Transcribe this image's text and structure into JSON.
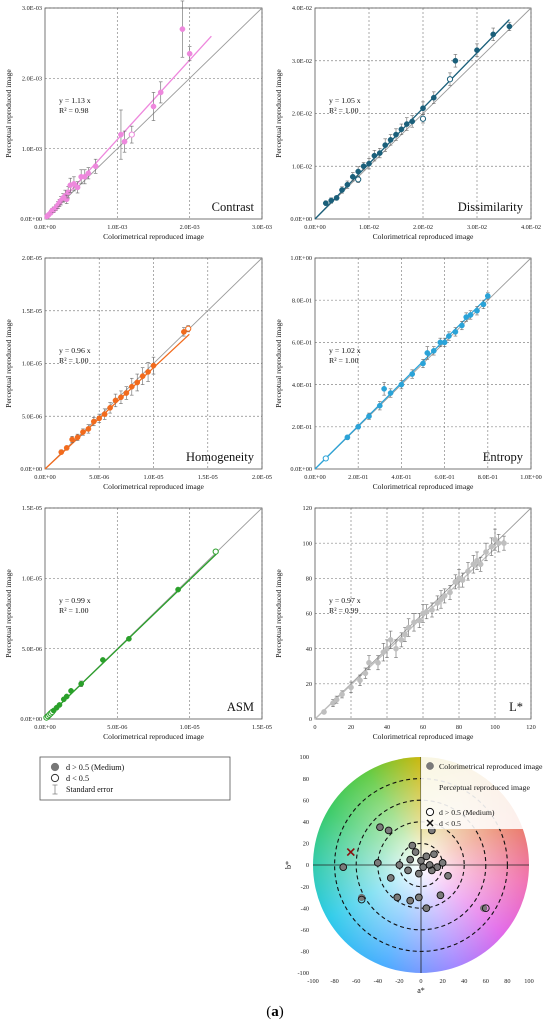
{
  "figure_label": {
    "open": "(",
    "letter": "a",
    "close": ")"
  },
  "common": {
    "xlabel": "Colorimetrical reproduced image",
    "ylabel": "Perceptual reproduced image"
  },
  "colors": {
    "contrast": "#ee88dd",
    "dissimilarity": "#1a5f7a",
    "homogeneity": "#f26b1d",
    "entropy": "#2aa3d8",
    "asm": "#2aa02a",
    "lstar": "#bfbfbf",
    "grid": "#888888",
    "diag": "#9a9a9a"
  },
  "legend": {
    "items": [
      {
        "label": "d > 0.5 (Medium)",
        "icon": "filled-circle-icon"
      },
      {
        "label": "d < 0.5",
        "icon": "open-circle-icon"
      },
      {
        "label": "Standard error",
        "icon": "error-bar-icon"
      }
    ]
  },
  "chart_data": [
    {
      "type": "scatter",
      "key": "contrast",
      "name": "Contrast",
      "xlim": [
        0,
        0.003
      ],
      "ylim": [
        0,
        0.003
      ],
      "xticks": [
        "0.0E+00",
        "1.0E-03",
        "2.0E-03",
        "3.0E-03"
      ],
      "yticks": [
        "0.0E+00",
        "1.0E-03",
        "2.0E-03",
        "3.0E-03"
      ],
      "equation": "y = 1.13 x",
      "r2": "R² = 0.98",
      "slope": 1.13,
      "fit_max_x": 0.0023,
      "points": [
        [
          3e-05,
          4e-05,
          2e-05,
          1
        ],
        [
          5e-05,
          6e-05,
          2e-05,
          1
        ],
        [
          8e-05,
          9e-05,
          3e-05,
          1
        ],
        [
          0.0001,
          0.00012,
          3e-05,
          1
        ],
        [
          0.00012,
          0.00013,
          4e-05,
          1
        ],
        [
          0.00015,
          0.00016,
          4e-05,
          1
        ],
        [
          0.00018,
          0.0002,
          5e-05,
          1
        ],
        [
          0.0002,
          0.00023,
          5e-05,
          1
        ],
        [
          0.00022,
          0.00026,
          6e-05,
          1
        ],
        [
          0.00025,
          0.0003,
          6e-05,
          1
        ],
        [
          0.00028,
          0.00033,
          8e-05,
          1
        ],
        [
          0.0003,
          0.00028,
          6e-05,
          1
        ],
        [
          0.00032,
          0.00038,
          8e-05,
          1
        ],
        [
          0.00035,
          0.00048,
          0.0001,
          1
        ],
        [
          0.0004,
          0.0005,
          0.0001,
          1
        ],
        [
          0.00045,
          0.00045,
          8e-05,
          1
        ],
        [
          0.0005,
          0.0006,
          0.0001,
          1
        ],
        [
          0.00055,
          0.0006,
          0.0001,
          1
        ],
        [
          0.0006,
          0.00065,
          8e-05,
          1
        ],
        [
          0.0007,
          0.00075,
          0.0001,
          1
        ],
        [
          0.00105,
          0.0012,
          0.00035,
          1
        ],
        [
          0.0011,
          0.0011,
          0.00015,
          1
        ],
        [
          0.0012,
          0.0012,
          0.00012,
          0
        ],
        [
          0.0015,
          0.0016,
          0.0002,
          1
        ],
        [
          0.0016,
          0.0018,
          0.00015,
          1
        ],
        [
          0.0019,
          0.0027,
          0.0004,
          1
        ],
        [
          0.002,
          0.00235,
          0.0001,
          1
        ]
      ]
    },
    {
      "type": "scatter",
      "key": "dissimilarity",
      "name": "Dissimilarity",
      "xlim": [
        0,
        0.04
      ],
      "ylim": [
        0,
        0.04
      ],
      "xticks": [
        "0.0E+00",
        "1.0E-02",
        "2.0E-02",
        "3.0E-02",
        "4.0E-02"
      ],
      "yticks": [
        "0.0E+00",
        "1.0E-02",
        "2.0E-02",
        "3.0E-02",
        "4.0E-02"
      ],
      "equation": "y = 1.05 x",
      "r2": "R² = 1.00",
      "slope": 1.05,
      "fit_max_x": 0.036,
      "points": [
        [
          0.002,
          0.003,
          0.0004,
          1
        ],
        [
          0.003,
          0.0035,
          0.0005,
          1
        ],
        [
          0.004,
          0.004,
          0.0004,
          1
        ],
        [
          0.005,
          0.0055,
          0.0006,
          1
        ],
        [
          0.006,
          0.0065,
          0.0007,
          1
        ],
        [
          0.007,
          0.008,
          0.0008,
          1
        ],
        [
          0.008,
          0.009,
          0.0009,
          1
        ],
        [
          0.009,
          0.01,
          0.0007,
          1
        ],
        [
          0.01,
          0.0105,
          0.001,
          1
        ],
        [
          0.011,
          0.012,
          0.001,
          1
        ],
        [
          0.012,
          0.0125,
          0.0009,
          1
        ],
        [
          0.013,
          0.014,
          0.0012,
          1
        ],
        [
          0.014,
          0.015,
          0.001,
          1
        ],
        [
          0.015,
          0.016,
          0.0011,
          1
        ],
        [
          0.016,
          0.017,
          0.001,
          1
        ],
        [
          0.017,
          0.018,
          0.0012,
          1
        ],
        [
          0.018,
          0.0185,
          0.0011,
          1
        ],
        [
          0.02,
          0.021,
          0.0012,
          1
        ],
        [
          0.022,
          0.023,
          0.0011,
          1
        ],
        [
          0.025,
          0.0265,
          0.0012,
          0
        ],
        [
          0.026,
          0.03,
          0.0012,
          1
        ],
        [
          0.03,
          0.032,
          0.0012,
          1
        ],
        [
          0.033,
          0.035,
          0.0012,
          1
        ],
        [
          0.036,
          0.0365,
          0.0008,
          1
        ],
        [
          0.008,
          0.0075,
          0.0006,
          0
        ],
        [
          0.02,
          0.019,
          0.0008,
          0
        ]
      ]
    },
    {
      "type": "scatter",
      "key": "homogeneity",
      "name": "Homogeneity",
      "xlim": [
        0,
        2e-05
      ],
      "ylim": [
        0,
        2e-05
      ],
      "xticks": [
        "0.0E+00",
        "5.0E-06",
        "1.0E-05",
        "1.5E-05",
        "2.0E-05"
      ],
      "yticks": [
        "0.0E+00",
        "5.0E-06",
        "1.0E-05",
        "1.5E-05",
        "2.0E-05"
      ],
      "equation": "y = 0.96 x",
      "r2": "R² = 1.00",
      "slope": 0.96,
      "fit_max_x": 1.33e-05,
      "points": [
        [
          1.5e-06,
          1.6e-06,
          2e-07,
          1
        ],
        [
          2e-06,
          2e-06,
          2e-07,
          1
        ],
        [
          2.5e-06,
          2.8e-06,
          3e-07,
          1
        ],
        [
          3e-06,
          3e-06,
          3e-07,
          1
        ],
        [
          3.5e-06,
          3.5e-06,
          3e-07,
          1
        ],
        [
          4e-06,
          3.8e-06,
          4e-07,
          1
        ],
        [
          4.5e-06,
          4.5e-06,
          4e-07,
          1
        ],
        [
          5e-06,
          4.8e-06,
          4e-07,
          1
        ],
        [
          5.5e-06,
          5.2e-06,
          5e-07,
          1
        ],
        [
          6e-06,
          5.8e-06,
          5e-07,
          1
        ],
        [
          6.5e-06,
          6.5e-06,
          6e-07,
          1
        ],
        [
          7e-06,
          6.8e-06,
          6e-07,
          1
        ],
        [
          7.5e-06,
          7.2e-06,
          6e-07,
          1
        ],
        [
          8e-06,
          7.8e-06,
          8e-07,
          1
        ],
        [
          8.5e-06,
          8.2e-06,
          8e-07,
          1
        ],
        [
          9e-06,
          8.8e-06,
          8e-07,
          1
        ],
        [
          9.5e-06,
          9.2e-06,
          9e-07,
          1
        ],
        [
          1e-05,
          9.8e-06,
          8e-07,
          1
        ],
        [
          1.28e-05,
          1.3e-05,
          4e-07,
          1
        ],
        [
          1.32e-05,
          1.33e-05,
          3e-07,
          0
        ]
      ]
    },
    {
      "type": "scatter",
      "key": "entropy",
      "name": "Entropy",
      "xlim": [
        0,
        1
      ],
      "ylim": [
        0,
        1
      ],
      "xticks": [
        "0.0E+00",
        "2.0E-01",
        "4.0E-01",
        "6.0E-01",
        "8.0E-01",
        "1.0E+00"
      ],
      "yticks": [
        "0.0E+00",
        "2.0E-01",
        "4.0E-01",
        "6.0E-01",
        "8.0E-01",
        "1.0E+00"
      ],
      "equation": "y = 1.02 x",
      "r2": "R² = 1.00",
      "slope": 1.02,
      "fit_max_x": 0.81,
      "points": [
        [
          0.05,
          0.05,
          0.005,
          0
        ],
        [
          0.15,
          0.15,
          0.01,
          1
        ],
        [
          0.2,
          0.2,
          0.01,
          1
        ],
        [
          0.25,
          0.25,
          0.015,
          1
        ],
        [
          0.3,
          0.3,
          0.02,
          1
        ],
        [
          0.32,
          0.38,
          0.03,
          1
        ],
        [
          0.35,
          0.36,
          0.02,
          1
        ],
        [
          0.4,
          0.4,
          0.02,
          1
        ],
        [
          0.45,
          0.45,
          0.02,
          1
        ],
        [
          0.5,
          0.5,
          0.02,
          1
        ],
        [
          0.52,
          0.55,
          0.03,
          1
        ],
        [
          0.55,
          0.56,
          0.02,
          1
        ],
        [
          0.58,
          0.6,
          0.02,
          1
        ],
        [
          0.6,
          0.6,
          0.02,
          1
        ],
        [
          0.62,
          0.63,
          0.02,
          1
        ],
        [
          0.65,
          0.65,
          0.02,
          1
        ],
        [
          0.68,
          0.68,
          0.02,
          1
        ],
        [
          0.7,
          0.72,
          0.02,
          1
        ],
        [
          0.72,
          0.73,
          0.02,
          1
        ],
        [
          0.75,
          0.75,
          0.02,
          1
        ],
        [
          0.78,
          0.78,
          0.02,
          1
        ],
        [
          0.8,
          0.82,
          0.015,
          1
        ]
      ]
    },
    {
      "type": "scatter",
      "key": "asm",
      "name": "ASM",
      "xlim": [
        0,
        1.5e-05
      ],
      "ylim": [
        0,
        1.5e-05
      ],
      "xticks": [
        "0.0E+00",
        "5.0E-06",
        "1.0E-05",
        "1.5E-05"
      ],
      "yticks": [
        "0.0E+00",
        "5.0E-06",
        "1.0E-05",
        "1.5E-05"
      ],
      "equation": "y = 0.99 x",
      "r2": "R² = 1.00",
      "slope": 0.99,
      "fit_max_x": 1.19e-05,
      "points": [
        [
          1e-07,
          1e-07,
          3e-08,
          0
        ],
        [
          2e-07,
          2e-07,
          4e-08,
          0
        ],
        [
          3e-07,
          3e-07,
          4e-08,
          0
        ],
        [
          4e-07,
          4e-07,
          5e-08,
          0
        ],
        [
          5e-07,
          5e-07,
          6e-08,
          0
        ],
        [
          6e-07,
          6e-07,
          6e-08,
          1
        ],
        [
          8e-07,
          8e-07,
          8e-08,
          1
        ],
        [
          1e-06,
          1e-06,
          1e-07,
          1
        ],
        [
          1.3e-06,
          1.4e-06,
          1e-07,
          1
        ],
        [
          1.5e-06,
          1.6e-06,
          1e-07,
          1
        ],
        [
          1.8e-06,
          2e-06,
          1e-07,
          1
        ],
        [
          2.5e-06,
          2.5e-06,
          2e-07,
          1
        ],
        [
          4e-06,
          4.2e-06,
          1e-07,
          1
        ],
        [
          5.8e-06,
          5.7e-06,
          1e-07,
          1
        ],
        [
          9.2e-06,
          9.2e-06,
          1e-07,
          1
        ],
        [
          1.18e-05,
          1.19e-05,
          1e-07,
          0
        ]
      ]
    },
    {
      "type": "scatter",
      "key": "lstar",
      "name": "L*",
      "xlim": [
        0,
        120
      ],
      "ylim": [
        0,
        120
      ],
      "xticks": [
        "0",
        "20",
        "40",
        "60",
        "80",
        "100",
        "120"
      ],
      "yticks": [
        "0",
        "20",
        "40",
        "60",
        "80",
        "100",
        "120"
      ],
      "equation": "y = 0.97 x",
      "r2": "R² = 0.99",
      "slope": 0.97,
      "fit_max_x": 105,
      "points": [
        [
          5,
          4,
          1,
          1
        ],
        [
          10,
          9,
          2,
          1
        ],
        [
          12,
          11,
          2,
          1
        ],
        [
          15,
          14,
          2,
          1
        ],
        [
          20,
          18,
          3,
          1
        ],
        [
          25,
          22,
          3,
          1
        ],
        [
          28,
          26,
          3,
          1
        ],
        [
          30,
          32,
          4,
          1
        ],
        [
          35,
          32,
          4,
          1
        ],
        [
          38,
          38,
          5,
          1
        ],
        [
          40,
          40,
          5,
          1
        ],
        [
          42,
          45,
          5,
          1
        ],
        [
          45,
          40,
          5,
          1
        ],
        [
          48,
          45,
          4,
          1
        ],
        [
          50,
          48,
          4,
          1
        ],
        [
          52,
          52,
          5,
          1
        ],
        [
          55,
          55,
          5,
          1
        ],
        [
          58,
          56,
          4,
          1
        ],
        [
          60,
          60,
          5,
          1
        ],
        [
          62,
          61,
          4,
          1
        ],
        [
          65,
          62,
          4,
          1
        ],
        [
          68,
          66,
          4,
          1
        ],
        [
          70,
          68,
          5,
          1
        ],
        [
          72,
          70,
          4,
          1
        ],
        [
          75,
          72,
          4,
          1
        ],
        [
          78,
          78,
          4,
          1
        ],
        [
          80,
          80,
          5,
          1
        ],
        [
          82,
          79,
          4,
          1
        ],
        [
          85,
          84,
          5,
          1
        ],
        [
          88,
          88,
          5,
          1
        ],
        [
          90,
          90,
          5,
          1
        ],
        [
          92,
          88,
          4,
          1
        ],
        [
          95,
          95,
          5,
          1
        ],
        [
          98,
          98,
          5,
          1
        ],
        [
          100,
          102,
          6,
          1
        ],
        [
          102,
          100,
          5,
          1
        ],
        [
          105,
          100,
          4,
          1
        ]
      ]
    },
    {
      "type": "scatter",
      "key": "ab",
      "name": "a* b* plane",
      "xlim": [
        -100,
        100
      ],
      "ylim": [
        -100,
        100
      ],
      "xlabel": "a*",
      "ylabel": "b*",
      "xticks": [
        "-100",
        "-80",
        "-60",
        "-40",
        "-20",
        "0",
        "20",
        "40",
        "60",
        "80",
        "100"
      ],
      "yticks": [
        "-100",
        "-80",
        "-60",
        "-40",
        "-20",
        "0",
        "20",
        "40",
        "60",
        "80",
        "100"
      ],
      "legend": {
        "colorimetrical": "Colorimetrical reproduced image",
        "perceptual": "Perceptual reproduced image",
        "medium": "d > 0.5 (Medium)",
        "small": "d < 0.5"
      },
      "colorimetrical": [
        [
          -72,
          -2
        ],
        [
          -40,
          2
        ],
        [
          -38,
          35
        ],
        [
          -30,
          32
        ],
        [
          -20,
          0
        ],
        [
          -12,
          -5
        ],
        [
          -10,
          5
        ],
        [
          -5,
          12
        ],
        [
          -2,
          -8
        ],
        [
          0,
          4
        ],
        [
          2,
          -2
        ],
        [
          5,
          8
        ],
        [
          8,
          0
        ],
        [
          10,
          -5
        ],
        [
          12,
          10
        ],
        [
          15,
          -2
        ],
        [
          20,
          2
        ],
        [
          -22,
          -30
        ],
        [
          -10,
          -33
        ],
        [
          -2,
          -30
        ],
        [
          5,
          -40
        ],
        [
          18,
          -28
        ],
        [
          58,
          -40
        ],
        [
          -55,
          -30
        ],
        [
          10,
          32
        ],
        [
          -8,
          18
        ],
        [
          -28,
          -12
        ],
        [
          25,
          -10
        ]
      ],
      "perceptual_medium": [
        [
          -72,
          -2
        ],
        [
          -40,
          2
        ],
        [
          -38,
          35
        ],
        [
          -30,
          32
        ],
        [
          -20,
          0
        ],
        [
          -12,
          -5
        ],
        [
          -10,
          5
        ],
        [
          -5,
          12
        ],
        [
          -2,
          -8
        ],
        [
          0,
          4
        ],
        [
          2,
          -2
        ],
        [
          5,
          8
        ],
        [
          8,
          0
        ],
        [
          10,
          -5
        ],
        [
          12,
          10
        ],
        [
          15,
          -2
        ],
        [
          20,
          2
        ],
        [
          -22,
          -30
        ],
        [
          -10,
          -33
        ],
        [
          -2,
          -30
        ],
        [
          5,
          -40
        ],
        [
          18,
          -28
        ],
        [
          60,
          -40
        ],
        [
          -55,
          -32
        ],
        [
          10,
          32
        ],
        [
          -8,
          18
        ],
        [
          -28,
          -12
        ],
        [
          25,
          -10
        ]
      ],
      "perceptual_small": [
        [
          -65,
          12
        ]
      ]
    }
  ]
}
